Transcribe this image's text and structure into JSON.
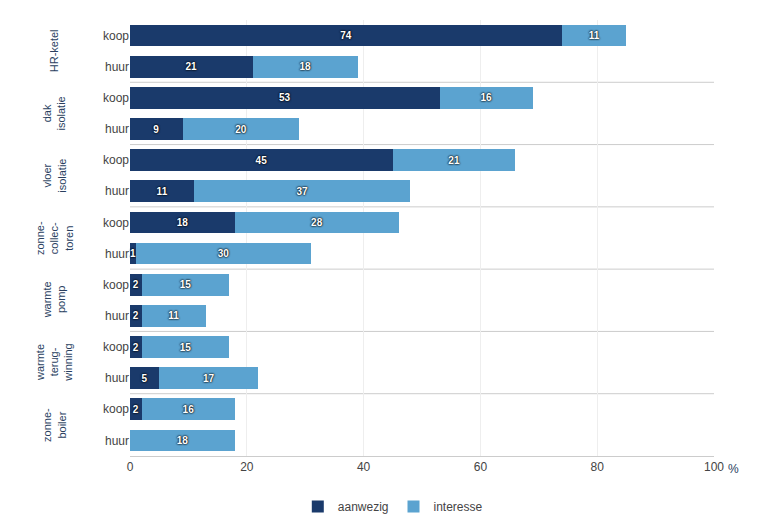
{
  "chart_data": {
    "type": "bar",
    "orientation": "horizontal",
    "stacked": true,
    "categories": [
      "koop",
      "huur",
      "koop",
      "huur",
      "koop",
      "huur",
      "koop",
      "huur",
      "koop",
      "huur",
      "koop",
      "huur",
      "koop",
      "huur"
    ],
    "group_labels": [
      "HR-ketel",
      "dak\nisolatie",
      "vloer\nisolatie",
      "zonne-\ncollec-\ntoren",
      "warmte\npomp",
      "warmte\nterug-\nwinning",
      "zonne-\nboiler"
    ],
    "series": [
      {
        "name": "aanwezig",
        "color": "#1a3a6b",
        "values": [
          74,
          21,
          53,
          9,
          45,
          11,
          18,
          1,
          2,
          2,
          2,
          5,
          2,
          0
        ]
      },
      {
        "name": "interesse",
        "color": "#5ba3d0",
        "values": [
          11,
          18,
          16,
          20,
          21,
          37,
          28,
          30,
          15,
          11,
          15,
          17,
          16,
          18
        ]
      }
    ],
    "xlabel": "%",
    "xlim": [
      0,
      100
    ],
    "xticks": [
      0,
      20,
      40,
      60,
      80,
      100
    ],
    "grid": true,
    "legend": "bottom",
    "data_labels": true
  }
}
